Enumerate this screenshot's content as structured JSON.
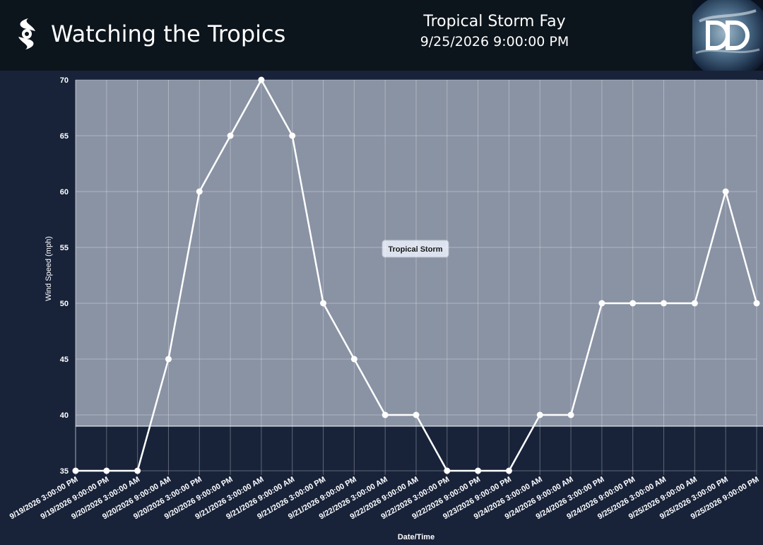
{
  "header": {
    "app_title": "Watching the Tropics",
    "storm_name": "Tropical Storm Fay",
    "storm_time": "9/25/2026 9:00:00 PM",
    "brand_icon": "hurricane-icon",
    "logo": "dd-logo"
  },
  "colors": {
    "background": "#18233a",
    "header": "#0c141c",
    "band_fill": "#8a93a4",
    "line": "#ffffff"
  },
  "chart_data": {
    "type": "line",
    "xlabel": "Date/Time",
    "ylabel": "Wind Speed (mph)",
    "ylim": [
      35,
      70
    ],
    "yticks": [
      35,
      40,
      45,
      50,
      55,
      60,
      65,
      70
    ],
    "grid": true,
    "categories": [
      "9/19/2026 3:00:00 PM",
      "9/19/2026 9:00:00 PM",
      "9/20/2026 3:00:00 AM",
      "9/20/2026 9:00:00 AM",
      "9/20/2026 3:00:00 PM",
      "9/20/2026 9:00:00 PM",
      "9/21/2026 3:00:00 AM",
      "9/21/2026 9:00:00 AM",
      "9/21/2026 3:00:00 PM",
      "9/21/2026 9:00:00 PM",
      "9/22/2026 3:00:00 AM",
      "9/22/2026 9:00:00 AM",
      "9/22/2026 3:00:00 PM",
      "9/22/2026 9:00:00 PM",
      "9/23/2026 9:00:00 PM",
      "9/24/2026 3:00:00 AM",
      "9/24/2026 9:00:00 AM",
      "9/24/2026 3:00:00 PM",
      "9/24/2026 9:00:00 PM",
      "9/25/2026 3:00:00 AM",
      "9/25/2026 9:00:00 AM",
      "9/25/2026 3:00:00 PM",
      "9/25/2026 9:00:00 PM"
    ],
    "values": [
      35,
      35,
      35,
      45,
      60,
      65,
      70,
      65,
      50,
      45,
      40,
      40,
      35,
      35,
      35,
      40,
      40,
      50,
      50,
      50,
      50,
      60,
      50
    ],
    "bands": [
      {
        "label": "Tropical Storm",
        "from": 39,
        "to": 70
      }
    ]
  }
}
